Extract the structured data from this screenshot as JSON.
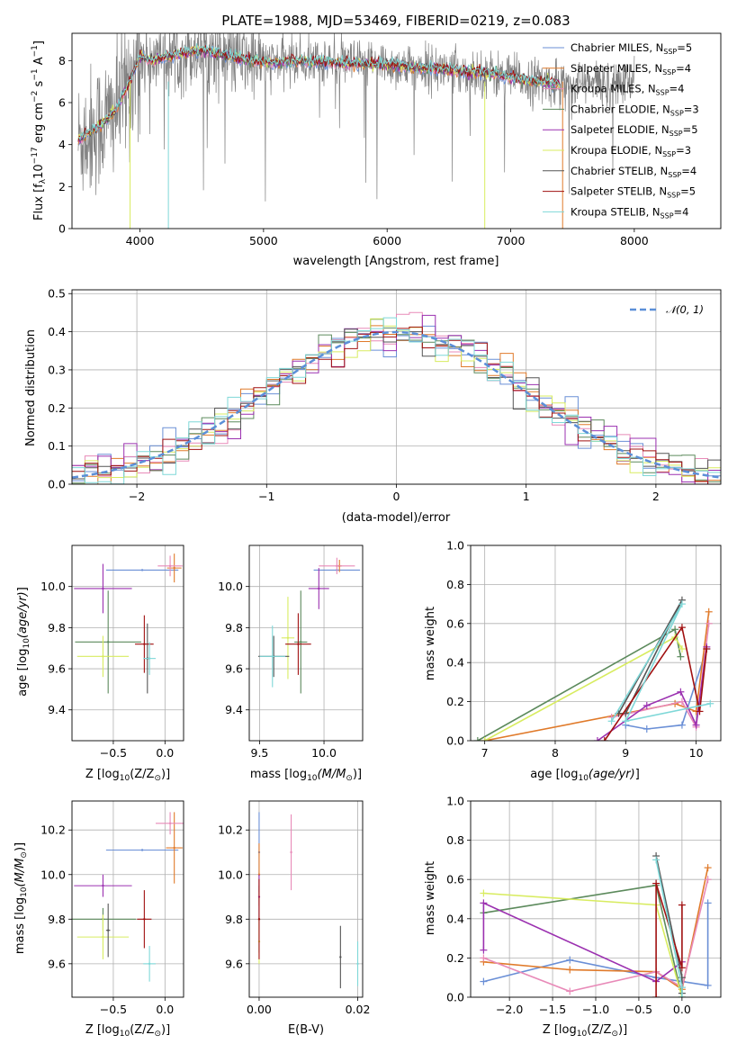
{
  "colors": {
    "data": "#808080",
    "series": [
      "#6a8fd6",
      "#e07a2a",
      "#e88ab8",
      "#5c8a5c",
      "#9b30b0",
      "#d8ec60",
      "#555555",
      "#a01010",
      "#7fd8d8"
    ]
  },
  "chart_data": [
    {
      "id": "spectrum",
      "type": "line",
      "title": "PLATE=1988, MJD=53469, FIBERID=0219, z=0.083",
      "xlabel": "wavelength [Angstrom, rest frame]",
      "ylabel": "Flux [fλ10⁻¹⁷ erg cm⁻² s⁻¹ A⁻¹]",
      "xlim": [
        3450,
        8700
      ],
      "ylim": [
        0,
        9.3
      ],
      "xticks": [
        4000,
        5000,
        6000,
        7000,
        8000
      ],
      "yticks": [
        0,
        2,
        4,
        6,
        8
      ],
      "legend_position": "upper-right",
      "continuum": {
        "x": [
          3500,
          3600,
          3700,
          3800,
          3900,
          4000,
          4100,
          4300,
          4500,
          4800,
          5000,
          5300,
          5600,
          6000,
          6400,
          6800,
          7000,
          7200,
          7400
        ],
        "y": [
          4.2,
          4.6,
          5.0,
          5.6,
          6.8,
          8.2,
          8.0,
          8.3,
          8.5,
          8.1,
          7.9,
          8.0,
          7.9,
          7.8,
          7.6,
          7.4,
          7.2,
          7.0,
          6.9
        ]
      },
      "series": [
        {
          "name": "Chabrier MILES, N_SSP=5",
          "legend": "Chabrier MILES, N",
          "sub": "SSP",
          "eq": "=5"
        },
        {
          "name": "Salpeter MILES, N_SSP=4",
          "legend": "Salpeter MILES, N",
          "sub": "SSP",
          "eq": "=4"
        },
        {
          "name": "Kroupa MILES, N_SSP=4",
          "legend": "Kroupa MILES, N",
          "sub": "SSP",
          "eq": "=4"
        },
        {
          "name": "Chabrier ELODIE, N_SSP=3",
          "legend": "Chabrier ELODIE, N",
          "sub": "SSP",
          "eq": "=3"
        },
        {
          "name": "Salpeter ELODIE, N_SSP=5",
          "legend": "Salpeter ELODIE, N",
          "sub": "SSP",
          "eq": "=5"
        },
        {
          "name": "Kroupa ELODIE, N_SSP=3",
          "legend": "Kroupa ELODIE, N",
          "sub": "SSP",
          "eq": "=3"
        },
        {
          "name": "Chabrier STELIB, N_SSP=4",
          "legend": "Chabrier STELIB, N",
          "sub": "SSP",
          "eq": "=4"
        },
        {
          "name": "Salpeter STELIB, N_SSP=5",
          "legend": "Salpeter STELIB, N",
          "sub": "SSP",
          "eq": "=5"
        },
        {
          "name": "Kroupa STELIB, N_SSP=4",
          "legend": "Kroupa STELIB, N",
          "sub": "SSP",
          "eq": "=4"
        }
      ]
    },
    {
      "id": "residuals",
      "type": "line",
      "xlabel": "(data-model)/error",
      "ylabel": "Normed distribution",
      "xlim": [
        -2.5,
        2.5
      ],
      "ylim": [
        0,
        0.51
      ],
      "xticks": [
        -2,
        -1,
        0,
        1,
        2
      ],
      "xticklabels": [
        "−2",
        "−1",
        "0",
        "1",
        "2"
      ],
      "yticks": [
        0.0,
        0.1,
        0.2,
        0.3,
        0.4,
        0.5
      ],
      "yticklabels": [
        "0.0",
        "0.1",
        "0.2",
        "0.3",
        "0.4",
        "0.5"
      ],
      "grid": true,
      "legend": "𝒩(0, 1)",
      "legend_position": "upper-right"
    },
    {
      "id": "age_vs_Z",
      "type": "scatter",
      "xlabel": "Z [log₁₀(Z/Z⊙)]",
      "ylabel": "age  [log₁₀(age/yr)]",
      "xlim": [
        -0.9,
        0.18
      ],
      "ylim": [
        9.25,
        10.2
      ],
      "xticks": [
        -0.5,
        0.0
      ],
      "xticklabels": [
        "−0.5",
        "0.0"
      ],
      "yticks": [
        9.4,
        9.6,
        9.8,
        10.0
      ],
      "yticklabels": [
        "9.4",
        "9.6",
        "9.8",
        "10.0"
      ],
      "grid": true,
      "points": [
        {
          "x": -0.22,
          "y": 10.08,
          "xerr": 0.35,
          "yerr": 0.0
        },
        {
          "x": 0.09,
          "y": 10.09,
          "xerr": 0.07,
          "yerr": 0.07
        },
        {
          "x": 0.05,
          "y": 10.1,
          "xerr": 0.12,
          "yerr": 0.05
        },
        {
          "x": -0.55,
          "y": 9.73,
          "xerr": 0.32,
          "yerr": 0.25
        },
        {
          "x": -0.6,
          "y": 9.99,
          "xerr": 0.28,
          "yerr": 0.12
        },
        {
          "x": -0.6,
          "y": 9.66,
          "xerr": 0.25,
          "yerr": 0.1
        },
        {
          "x": -0.17,
          "y": 9.65,
          "xerr": 0.02,
          "yerr": 0.17
        },
        {
          "x": -0.2,
          "y": 9.72,
          "xerr": 0.09,
          "yerr": 0.14
        },
        {
          "x": -0.15,
          "y": 9.65,
          "xerr": 0.06,
          "yerr": 0.08
        }
      ]
    },
    {
      "id": "age_vs_mass",
      "type": "scatter",
      "xlabel": "mass [log₁₀(M/M⊙)]",
      "xlim": [
        9.42,
        10.3
      ],
      "ylim": [
        9.25,
        10.2
      ],
      "xticks": [
        9.5,
        10.0
      ],
      "xticklabels": [
        "9.5",
        "10.0"
      ],
      "yticks": [
        9.4,
        9.6,
        9.8,
        10.0
      ],
      "yticklabels": [
        "9.4",
        "9.6",
        "9.8",
        "10.0"
      ],
      "grid": true,
      "points": [
        {
          "x": 10.1,
          "y": 10.08,
          "xerr": 0.18,
          "yerr": 0.0
        },
        {
          "x": 10.12,
          "y": 10.1,
          "xerr": 0.02,
          "yerr": 0.03
        },
        {
          "x": 10.1,
          "y": 10.1,
          "xerr": 0.14,
          "yerr": 0.04
        },
        {
          "x": 9.82,
          "y": 9.73,
          "xerr": 0.05,
          "yerr": 0.25
        },
        {
          "x": 9.96,
          "y": 9.99,
          "xerr": 0.08,
          "yerr": 0.1
        },
        {
          "x": 9.72,
          "y": 9.75,
          "xerr": 0.05,
          "yerr": 0.2
        },
        {
          "x": 9.61,
          "y": 9.66,
          "xerr": 0.12,
          "yerr": 0.1
        },
        {
          "x": 9.8,
          "y": 9.72,
          "xerr": 0.1,
          "yerr": 0.15
        },
        {
          "x": 9.6,
          "y": 9.66,
          "xerr": 0.1,
          "yerr": 0.15
        }
      ]
    },
    {
      "id": "massweight_vs_age",
      "type": "line",
      "xlabel": "age  [log₁₀(age/yr)]",
      "ylabel": "mass weight",
      "xlim": [
        6.8,
        10.35
      ],
      "ylim": [
        0,
        1.0
      ],
      "xticks": [
        7,
        8,
        9,
        10
      ],
      "yticks": [
        0.0,
        0.2,
        0.4,
        0.6,
        0.8,
        1.0
      ],
      "yticklabels": [
        "0.0",
        "0.2",
        "0.4",
        "0.6",
        "0.8",
        "1.0"
      ],
      "grid": true,
      "series": [
        {
          "x": [
            9.0,
            9.3,
            9.8,
            10.15
          ],
          "y": [
            0.08,
            0.06,
            0.08,
            0.47
          ]
        },
        {
          "x": [
            7.0,
            9.7,
            10.0,
            10.18
          ],
          "y": [
            0.0,
            0.19,
            0.15,
            0.66
          ]
        },
        {
          "x": [
            8.8,
            9.8,
            10.0,
            10.18
          ],
          "y": [
            0.12,
            0.2,
            0.07,
            0.6
          ]
        },
        {
          "x": [
            6.9,
            9.7,
            9.78
          ],
          "y": [
            0.0,
            0.57,
            0.43
          ]
        },
        {
          "x": [
            8.6,
            9.3,
            9.78,
            10.0,
            10.15
          ],
          "y": [
            0.0,
            0.18,
            0.25,
            0.08,
            0.48
          ]
        },
        {
          "x": [
            7.0,
            9.7,
            9.8
          ],
          "y": [
            0.0,
            0.53,
            0.47
          ]
        },
        {
          "x": [
            8.9,
            9.8,
            9.0
          ],
          "y": [
            0.14,
            0.72,
            0.14
          ]
        },
        {
          "x": [
            8.7,
            9.8,
            10.05,
            10.15
          ],
          "y": [
            0.0,
            0.58,
            0.15,
            0.47
          ]
        },
        {
          "x": [
            8.8,
            9.8,
            9.0,
            10.2
          ],
          "y": [
            0.1,
            0.7,
            0.1,
            0.19
          ]
        }
      ]
    },
    {
      "id": "mass_vs_Z",
      "type": "scatter",
      "xlabel": "Z [log₁₀(Z/Z⊙)]",
      "ylabel": "mass [log₁₀(M/M⊙)]",
      "xlim": [
        -0.9,
        0.18
      ],
      "ylim": [
        9.45,
        10.33
      ],
      "xticks": [
        -0.5,
        0.0
      ],
      "xticklabels": [
        "−0.5",
        "0.0"
      ],
      "yticks": [
        9.6,
        9.8,
        10.0,
        10.2
      ],
      "yticklabels": [
        "9.6",
        "9.8",
        "10.0",
        "10.2"
      ],
      "grid": true,
      "points": [
        {
          "x": -0.22,
          "y": 10.11,
          "xerr": 0.35,
          "yerr": 0.0
        },
        {
          "x": 0.09,
          "y": 10.12,
          "xerr": 0.08,
          "yerr": 0.16
        },
        {
          "x": 0.05,
          "y": 10.23,
          "xerr": 0.14,
          "yerr": 0.05
        },
        {
          "x": -0.6,
          "y": 9.8,
          "xerr": 0.32,
          "yerr": 0.05
        },
        {
          "x": -0.6,
          "y": 9.95,
          "xerr": 0.28,
          "yerr": 0.05
        },
        {
          "x": -0.6,
          "y": 9.72,
          "xerr": 0.25,
          "yerr": 0.1
        },
        {
          "x": -0.55,
          "y": 9.75,
          "xerr": 0.02,
          "yerr": 0.12
        },
        {
          "x": -0.2,
          "y": 9.8,
          "xerr": 0.07,
          "yerr": 0.13
        },
        {
          "x": -0.15,
          "y": 9.6,
          "xerr": 0.06,
          "yerr": 0.08
        }
      ]
    },
    {
      "id": "mass_vs_ebv",
      "type": "scatter",
      "xlabel": "E(B-V)",
      "xlim": [
        -0.002,
        0.021
      ],
      "ylim": [
        9.45,
        10.33
      ],
      "xticks": [
        0.0,
        0.02
      ],
      "xticklabels": [
        "0.00",
        "0.02"
      ],
      "yticks": [
        9.6,
        9.8,
        10.0,
        10.2
      ],
      "yticklabels": [
        "9.6",
        "9.8",
        "10.0",
        "10.2"
      ],
      "grid": true,
      "points": [
        {
          "x": 0.0,
          "y": 10.1,
          "yerr": 0.18
        },
        {
          "x": 0.0,
          "y": 10.0,
          "yerr": 0.14
        },
        {
          "x": 0.0065,
          "y": 10.1,
          "yerr": 0.17
        },
        {
          "x": 0.0,
          "y": 9.8,
          "yerr": 0.15
        },
        {
          "x": 0.0,
          "y": 9.9,
          "yerr": 0.1
        },
        {
          "x": 0.0,
          "y": 9.7,
          "yerr": 0.1
        },
        {
          "x": 0.0165,
          "y": 9.63,
          "yerr": 0.14
        },
        {
          "x": 0.0,
          "y": 9.8,
          "yerr": 0.18
        },
        {
          "x": 0.02,
          "y": 9.6,
          "yerr": 0.1
        }
      ]
    },
    {
      "id": "massweight_vs_Z",
      "type": "line",
      "xlabel": "Z [log₁₀(Z/Z⊙)]",
      "ylabel": "mass weight",
      "xlim": [
        -2.45,
        0.45
      ],
      "ylim": [
        0,
        1.0
      ],
      "xticks": [
        -2.0,
        -1.5,
        -1.0,
        -0.5,
        0.0
      ],
      "xticklabels": [
        "−2.0",
        "−1.5",
        "−1.0",
        "−0.5",
        "0.0"
      ],
      "yticks": [
        0.0,
        0.2,
        0.4,
        0.6,
        0.8,
        1.0
      ],
      "yticklabels": [
        "0.0",
        "0.2",
        "0.4",
        "0.6",
        "0.8",
        "1.0"
      ],
      "grid": true,
      "series": [
        {
          "x": [
            -2.3,
            -1.3,
            -0.3,
            0.0,
            0.3,
            0.3
          ],
          "y": [
            0.08,
            0.19,
            0.1,
            0.08,
            0.06,
            0.48
          ]
        },
        {
          "x": [
            -2.3,
            -1.3,
            -0.3,
            0.0,
            0.3
          ],
          "y": [
            0.18,
            0.14,
            0.13,
            0.04,
            0.66
          ]
        },
        {
          "x": [
            -2.3,
            -1.3,
            -0.3,
            0.0,
            0.3
          ],
          "y": [
            0.2,
            0.03,
            0.13,
            0.05,
            0.6
          ]
        },
        {
          "x": [
            -2.3,
            -0.3,
            0.0
          ],
          "y": [
            0.43,
            0.57,
            0.0
          ]
        },
        {
          "x": [
            -2.3,
            -2.3,
            -0.3,
            0.0
          ],
          "y": [
            0.24,
            0.48,
            0.08,
            0.18
          ]
        },
        {
          "x": [
            -2.3,
            -0.3,
            0.0
          ],
          "y": [
            0.53,
            0.47,
            0.0
          ]
        },
        {
          "x": [
            -0.3,
            0.0,
            0.0
          ],
          "y": [
            0.72,
            0.1,
            0.02
          ]
        },
        {
          "x": [
            -0.3,
            -0.3,
            0.0,
            0.0
          ],
          "y": [
            0.0,
            0.58,
            0.15,
            0.47
          ]
        },
        {
          "x": [
            -0.3,
            0.0,
            0.0
          ],
          "y": [
            0.7,
            0.05,
            0.0
          ]
        }
      ]
    }
  ]
}
